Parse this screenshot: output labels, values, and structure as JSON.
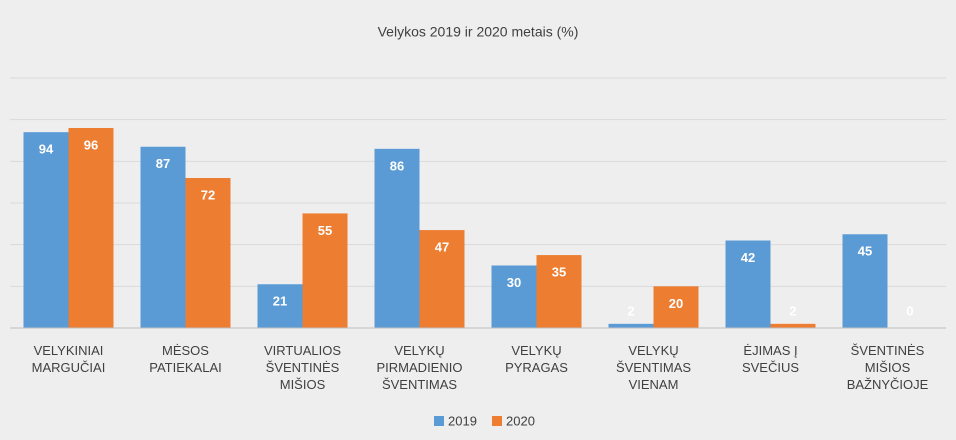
{
  "chart_data": {
    "type": "bar",
    "title": "Velykos 2019 ir 2020 metais (%)",
    "categories": [
      "VELYKINIAI\nMARGUČIAI",
      "MĖSOS\nPATIEKALAI",
      "VIRTUALIOS\nŠVENTINĖS\nMIŠIOS",
      "VELYKŲ\nPIRMADIENIO\nŠVENTIMAS",
      "VELYKŲ\nPYRAGAS",
      "VELYKŲ\nŠVENTIMAS\nVIENAM",
      "ĖJIMAS Į\nSVEČIUS",
      "ŠVENTINĖS\nMIŠIOS\nBAŽNYČIOJE"
    ],
    "series": [
      {
        "name": "2019",
        "color": "#5b9bd5",
        "values": [
          94,
          87,
          21,
          86,
          30,
          2,
          42,
          45
        ]
      },
      {
        "name": "2020",
        "color": "#ed7d31",
        "values": [
          96,
          72,
          55,
          47,
          35,
          20,
          2,
          0
        ]
      }
    ],
    "ylim": [
      0,
      120
    ],
    "yticks": [
      0,
      20,
      40,
      60,
      80,
      100,
      120
    ],
    "grid": true,
    "legend": "bottom"
  }
}
